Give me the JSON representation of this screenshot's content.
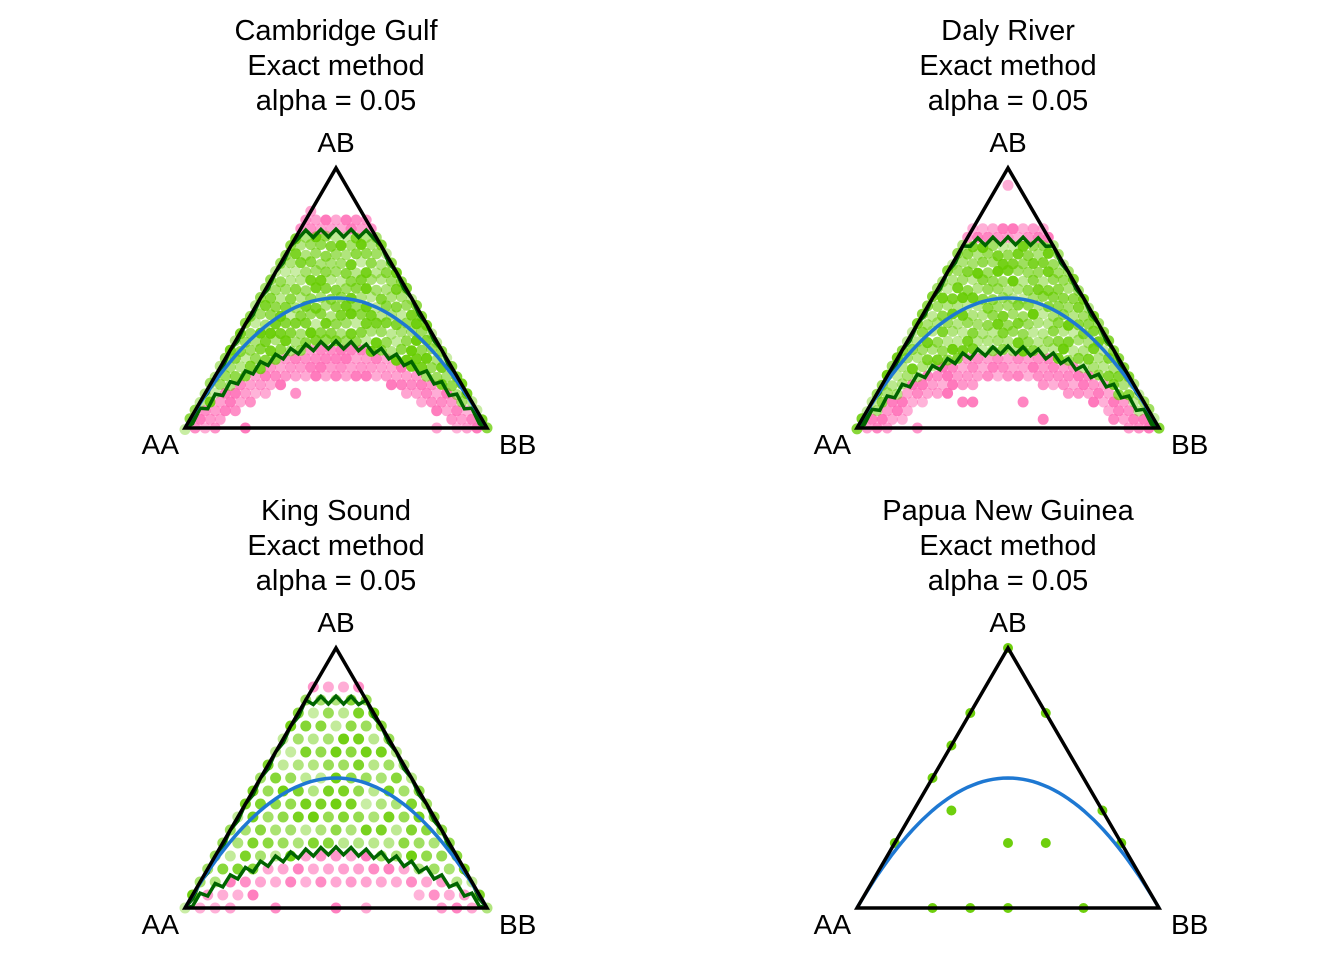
{
  "colors": {
    "background": "#ffffff",
    "triangle": "#000000",
    "accept_region": "#006400",
    "hwe_curve": "#1e78d2",
    "accepted_marker": "#66cc00",
    "rejected_marker": "#ff69b4"
  },
  "chart_data": [
    {
      "type": "scatter",
      "subtype": "ternary-de-finetti",
      "title": [
        "Cambridge Gulf",
        "Exact method",
        "alpha = 0.05"
      ],
      "vertices": {
        "top": "AB",
        "left": "AA",
        "right": "BB"
      },
      "alpha": 0.05,
      "n_approx": 30,
      "region_ranges": {
        "hi_het_max": 0.75,
        "lo_het_at_p05": 0.32
      },
      "density": "dense",
      "hwe_curve": true
    },
    {
      "type": "scatter",
      "subtype": "ternary-de-finetti",
      "title": [
        "Daly River",
        "Exact method",
        "alpha = 0.05"
      ],
      "vertices": {
        "top": "AB",
        "left": "AA",
        "right": "BB"
      },
      "alpha": 0.05,
      "n_approx": 30,
      "region_ranges": {
        "hi_het_max": 0.72,
        "lo_het_at_p05": 0.3
      },
      "density": "dense",
      "hwe_curve": true
    },
    {
      "type": "scatter",
      "subtype": "ternary-de-finetti",
      "title": [
        "King Sound",
        "Exact method",
        "alpha = 0.05"
      ],
      "vertices": {
        "top": "AB",
        "left": "AA",
        "right": "BB"
      },
      "alpha": 0.05,
      "n_approx": 20,
      "region_ranges": {
        "hi_het_max": 0.8,
        "lo_het_at_p05": 0.22
      },
      "density": "medium",
      "hwe_curve": true
    },
    {
      "type": "scatter",
      "subtype": "ternary-de-finetti",
      "title": [
        "Papua New Guinea",
        "Exact method",
        "alpha = 0.05"
      ],
      "vertices": {
        "top": "AB",
        "left": "AA",
        "right": "BB"
      },
      "alpha": 0.05,
      "hwe_curve": true,
      "density": "sparse",
      "points": [
        {
          "AA": 0.0,
          "AB": 1.0,
          "BB": 0.0,
          "status": "accepted"
        },
        {
          "AA": 0.25,
          "AB": 0.75,
          "BB": 0.0,
          "status": "accepted"
        },
        {
          "AA": 0.0,
          "AB": 0.75,
          "BB": 0.25,
          "status": "accepted"
        },
        {
          "AA": 0.375,
          "AB": 0.625,
          "BB": 0.0,
          "status": "accepted"
        },
        {
          "AA": 0.5,
          "AB": 0.5,
          "BB": 0.0,
          "status": "accepted"
        },
        {
          "AA": 0.75,
          "AB": 0.25,
          "BB": 0.0,
          "status": "accepted"
        },
        {
          "AA": 0.0,
          "AB": 0.25,
          "BB": 0.75,
          "status": "accepted"
        },
        {
          "AA": 0.0,
          "AB": 0.375,
          "BB": 0.625,
          "status": "accepted"
        },
        {
          "AA": 0.5,
          "AB": 0.375,
          "BB": 0.125,
          "status": "accepted"
        },
        {
          "AA": 0.25,
          "AB": 0.25,
          "BB": 0.5,
          "status": "accepted"
        },
        {
          "AA": 0.375,
          "AB": 0.25,
          "BB": 0.375,
          "status": "accepted"
        },
        {
          "AA": 0.75,
          "AB": 0.0,
          "BB": 0.25,
          "status": "accepted"
        },
        {
          "AA": 0.625,
          "AB": 0.0,
          "BB": 0.375,
          "status": "accepted"
        },
        {
          "AA": 0.5,
          "AB": 0.0,
          "BB": 0.5,
          "status": "accepted"
        },
        {
          "AA": 0.25,
          "AB": 0.0,
          "BB": 0.75,
          "status": "accepted"
        }
      ]
    }
  ]
}
